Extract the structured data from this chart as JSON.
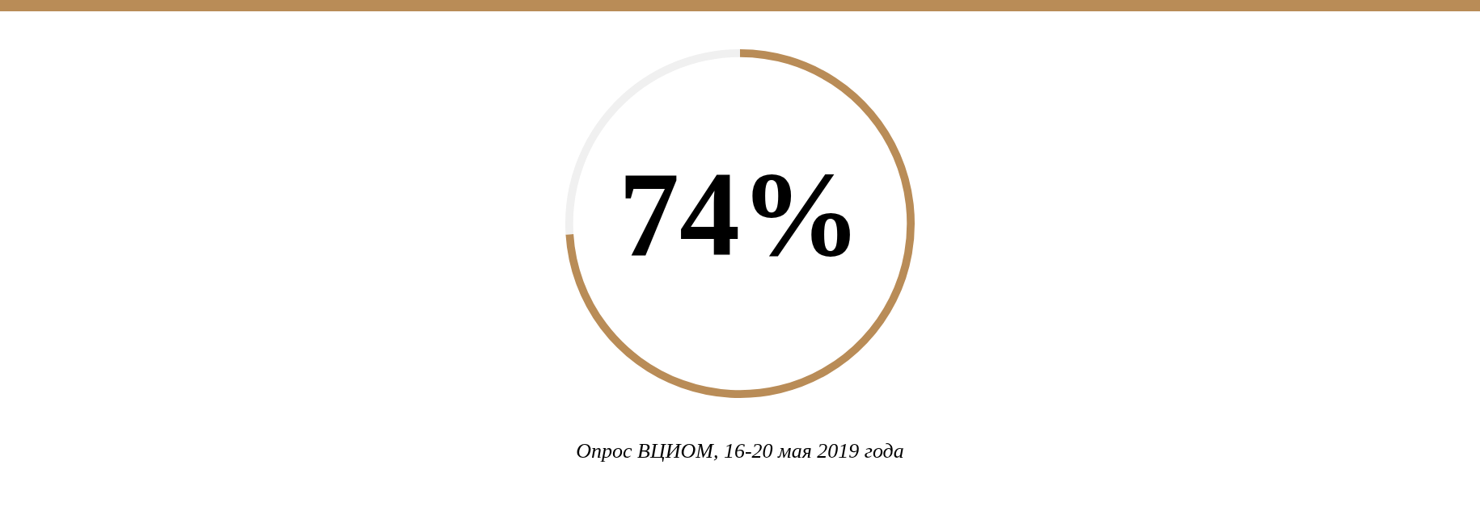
{
  "chart_data": {
    "type": "donut",
    "categories": [
      null,
      null
    ],
    "values": [
      74,
      26
    ],
    "colors": [
      "#b98c57",
      "#f0f0f0"
    ],
    "value_labels": [
      "74%",
      null
    ],
    "annotations": [
      "Опрос ВЦИОМ, 16-20 мая 2019 года"
    ]
  }
}
